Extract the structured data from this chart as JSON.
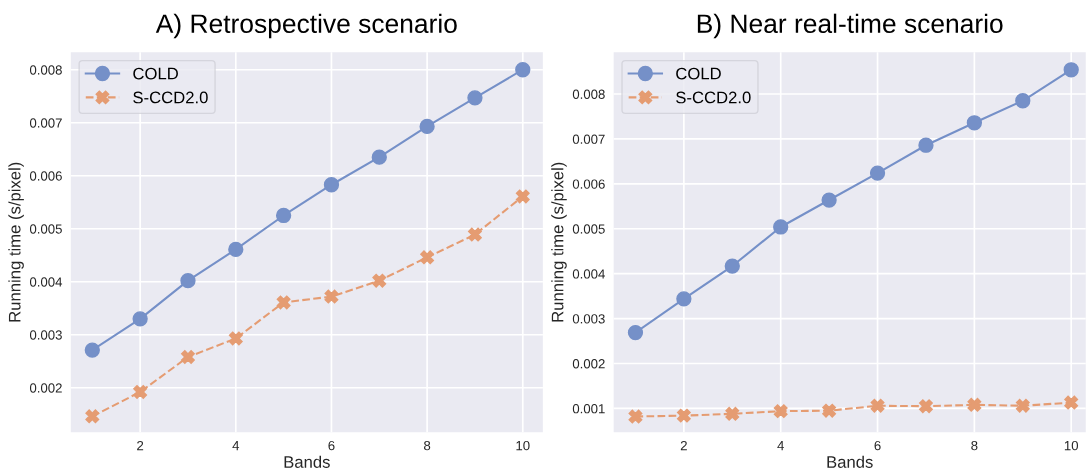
{
  "chart_data": [
    {
      "type": "line",
      "title": "A) Retrospective scenario",
      "xlabel": "Bands",
      "ylabel": "Running time (s/pixel)",
      "x": [
        1,
        2,
        3,
        4,
        5,
        6,
        7,
        8,
        9,
        10
      ],
      "series": [
        {
          "name": "COLD",
          "color": "#7590c8",
          "marker": "circle",
          "line_style": "solid",
          "values": [
            0.00271,
            0.0033,
            0.00402,
            0.00461,
            0.00525,
            0.00583,
            0.00635,
            0.00693,
            0.00747,
            0.008
          ]
        },
        {
          "name": "S-CCD2.0",
          "color": "#e59c72",
          "marker": "cross",
          "line_style": "dashed",
          "values": [
            0.00146,
            0.00192,
            0.00258,
            0.00293,
            0.00361,
            0.00372,
            0.00402,
            0.00446,
            0.00489,
            0.00561
          ]
        }
      ],
      "xlim": [
        0.55,
        10.42
      ],
      "xticks": [
        2,
        4,
        6,
        8,
        10
      ],
      "ylim": [
        0.00116,
        0.00833
      ],
      "yticks": [
        0.002,
        0.003,
        0.004,
        0.005,
        0.006,
        0.007,
        0.008
      ],
      "grid": true,
      "legend": "top left"
    },
    {
      "type": "line",
      "title": "B) Near real-time scenario",
      "xlabel": "Bands",
      "ylabel": "Running time (s/pixel)",
      "x": [
        1,
        2,
        3,
        4,
        5,
        6,
        7,
        8,
        9,
        10
      ],
      "series": [
        {
          "name": "COLD",
          "color": "#7590c8",
          "marker": "circle",
          "line_style": "solid",
          "values": [
            0.00269,
            0.00344,
            0.00417,
            0.00504,
            0.00564,
            0.00624,
            0.00686,
            0.00736,
            0.00785,
            0.00854
          ]
        },
        {
          "name": "S-CCD2.0",
          "color": "#e59c72",
          "marker": "cross",
          "line_style": "dashed",
          "values": [
            0.00082,
            0.00084,
            0.00088,
            0.00094,
            0.00095,
            0.00106,
            0.00105,
            0.00108,
            0.00106,
            0.00113
          ]
        }
      ],
      "xlim": [
        0.55,
        10.3
      ],
      "xticks": [
        2,
        4,
        6,
        8,
        10
      ],
      "ylim": [
        0.00047,
        0.00893
      ],
      "yticks": [
        0.001,
        0.002,
        0.003,
        0.004,
        0.005,
        0.006,
        0.007,
        0.008
      ],
      "grid": true,
      "legend": "top left"
    }
  ]
}
